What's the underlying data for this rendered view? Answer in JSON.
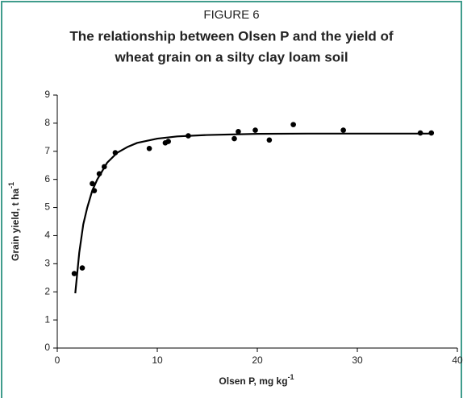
{
  "chart_data": {
    "type": "scatter",
    "figure_label": "FIGURE 6",
    "title": [
      "The relationship between Olsen P and the yield of",
      "wheat grain on a silty clay loam soil"
    ],
    "x_label": "Olsen P, mg kg",
    "x_label_superscript": "-1",
    "y_label": "Grain yield, t ha",
    "y_label_superscript": "-1",
    "xlim": [
      0,
      40
    ],
    "xticks": [
      0,
      10,
      20,
      30,
      40
    ],
    "ylim": [
      0,
      9
    ],
    "yticks": [
      0,
      1,
      2,
      3,
      4,
      5,
      6,
      7,
      8,
      9
    ],
    "grid": false,
    "series": [
      {
        "mode": "markers",
        "color": "#000000",
        "x": [
          1.7,
          2.5,
          3.5,
          3.7,
          4.2,
          4.7,
          5.8,
          9.2,
          10.8,
          11.1,
          13.1,
          17.7,
          18.1,
          19.8,
          21.2,
          23.6,
          28.6,
          36.3,
          37.4
        ],
        "values": [
          2.65,
          2.85,
          5.85,
          5.6,
          6.2,
          6.45,
          6.95,
          7.1,
          7.3,
          7.35,
          7.55,
          7.45,
          7.7,
          7.75,
          7.4,
          7.95,
          7.75,
          7.65,
          7.65
        ]
      },
      {
        "mode": "line",
        "color": "#000000",
        "x": [
          1.8,
          2.2,
          2.6,
          3,
          3.5,
          4,
          5,
          6,
          7,
          8,
          10,
          12,
          15,
          20,
          25,
          30,
          37.5
        ],
        "values": [
          1.95,
          3.4,
          4.4,
          5.0,
          5.6,
          6.0,
          6.6,
          6.95,
          7.15,
          7.3,
          7.45,
          7.53,
          7.58,
          7.62,
          7.63,
          7.63,
          7.63
        ]
      }
    ]
  }
}
